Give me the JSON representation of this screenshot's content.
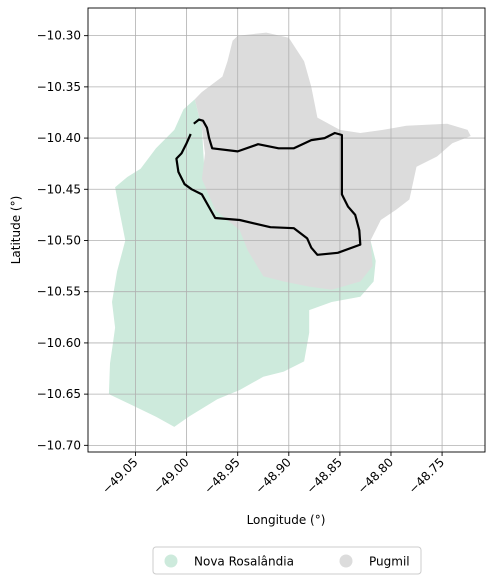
{
  "map": {
    "xlabel": "Longitude (°)",
    "ylabel": "Latitude (°)",
    "xlim": [
      -49.0965,
      -48.708
    ],
    "ylim": [
      -10.7065,
      -10.273
    ],
    "x_ticks": [
      -49.05,
      -49.0,
      -48.95,
      -48.9,
      -48.85,
      -48.8,
      -48.75
    ],
    "x_tick_labels": [
      "−49.05",
      "−49.00",
      "−48.95",
      "−48.90",
      "−48.85",
      "−48.80",
      "−48.75"
    ],
    "y_ticks": [
      -10.3,
      -10.35,
      -10.4,
      -10.45,
      -10.5,
      -10.55,
      -10.6,
      -10.65,
      -10.7
    ],
    "y_tick_labels": [
      "−10.30",
      "−10.35",
      "−10.40",
      "−10.45",
      "−10.50",
      "−10.55",
      "−10.60",
      "−10.65",
      "−10.70"
    ],
    "grid": true,
    "legend_position": "bottom-center"
  },
  "regions": [
    {
      "name": "Nova Rosalândia",
      "color": "#cdeadc",
      "outline": [
        [
          -49.003,
          -10.372
        ],
        [
          -48.992,
          -10.362
        ],
        [
          -48.985,
          -10.39
        ],
        [
          -48.983,
          -10.425
        ],
        [
          -48.975,
          -10.44
        ],
        [
          -48.962,
          -10.452
        ],
        [
          -48.951,
          -10.462
        ],
        [
          -48.932,
          -10.467
        ],
        [
          -48.905,
          -10.47
        ],
        [
          -48.878,
          -10.47
        ],
        [
          -48.848,
          -10.462
        ],
        [
          -48.833,
          -10.48
        ],
        [
          -48.82,
          -10.5
        ],
        [
          -48.815,
          -10.52
        ],
        [
          -48.817,
          -10.54
        ],
        [
          -48.83,
          -10.555
        ],
        [
          -48.858,
          -10.56
        ],
        [
          -48.88,
          -10.568
        ],
        [
          -48.88,
          -10.59
        ],
        [
          -48.885,
          -10.618
        ],
        [
          -48.905,
          -10.628
        ],
        [
          -48.925,
          -10.633
        ],
        [
          -48.948,
          -10.646
        ],
        [
          -48.97,
          -10.655
        ],
        [
          -48.998,
          -10.672
        ],
        [
          -49.012,
          -10.682
        ],
        [
          -49.03,
          -10.672
        ],
        [
          -49.055,
          -10.66
        ],
        [
          -49.076,
          -10.65
        ],
        [
          -49.075,
          -10.62
        ],
        [
          -49.072,
          -10.6
        ],
        [
          -49.07,
          -10.585
        ],
        [
          -49.073,
          -10.56
        ],
        [
          -49.068,
          -10.53
        ],
        [
          -49.06,
          -10.5
        ],
        [
          -49.065,
          -10.475
        ],
        [
          -49.07,
          -10.448
        ],
        [
          -49.058,
          -10.438
        ],
        [
          -49.045,
          -10.43
        ],
        [
          -49.03,
          -10.41
        ],
        [
          -49.012,
          -10.392
        ]
      ]
    },
    {
      "name": "Pugmil",
      "color": "#dcdcdc",
      "outline": [
        [
          -48.95,
          -10.3
        ],
        [
          -48.922,
          -10.297
        ],
        [
          -48.9,
          -10.302
        ],
        [
          -48.885,
          -10.325
        ],
        [
          -48.878,
          -10.35
        ],
        [
          -48.872,
          -10.38
        ],
        [
          -48.85,
          -10.392
        ],
        [
          -48.83,
          -10.395
        ],
        [
          -48.808,
          -10.392
        ],
        [
          -48.785,
          -10.388
        ],
        [
          -48.745,
          -10.386
        ],
        [
          -48.725,
          -10.392
        ],
        [
          -48.722,
          -10.398
        ],
        [
          -48.74,
          -10.405
        ],
        [
          -48.755,
          -10.418
        ],
        [
          -48.775,
          -10.428
        ],
        [
          -48.782,
          -10.46
        ],
        [
          -48.795,
          -10.47
        ],
        [
          -48.81,
          -10.48
        ],
        [
          -48.82,
          -10.5
        ],
        [
          -48.818,
          -10.525
        ],
        [
          -48.83,
          -10.54
        ],
        [
          -48.858,
          -10.548
        ],
        [
          -48.88,
          -10.545
        ],
        [
          -48.905,
          -10.54
        ],
        [
          -48.925,
          -10.535
        ],
        [
          -48.94,
          -10.51
        ],
        [
          -48.948,
          -10.49
        ],
        [
          -48.972,
          -10.47
        ],
        [
          -48.985,
          -10.44
        ],
        [
          -48.982,
          -10.415
        ],
        [
          -48.985,
          -10.39
        ],
        [
          -48.992,
          -10.362
        ],
        [
          -48.985,
          -10.355
        ],
        [
          -48.965,
          -10.34
        ],
        [
          -48.96,
          -10.325
        ],
        [
          -48.955,
          -10.305
        ]
      ]
    }
  ],
  "boundary": {
    "color": "#000000",
    "line": [
      [
        -48.993,
        -10.386
      ],
      [
        -48.988,
        -10.382
      ],
      [
        -48.984,
        -10.383
      ],
      [
        -48.98,
        -10.39
      ],
      [
        -48.978,
        -10.4
      ],
      [
        -48.975,
        -10.41
      ],
      [
        -48.95,
        -10.413
      ],
      [
        -48.93,
        -10.406
      ],
      [
        -48.91,
        -10.41
      ],
      [
        -48.895,
        -10.41
      ],
      [
        -48.878,
        -10.402
      ],
      [
        -48.865,
        -10.4
      ],
      [
        -48.855,
        -10.395
      ],
      [
        -48.848,
        -10.397
      ],
      [
        -48.848,
        -10.455
      ],
      [
        -48.842,
        -10.467
      ],
      [
        -48.835,
        -10.475
      ],
      [
        -48.831,
        -10.49
      ],
      [
        -48.83,
        -10.504
      ],
      [
        -48.852,
        -10.512
      ],
      [
        -48.872,
        -10.514
      ],
      [
        -48.878,
        -10.507
      ],
      [
        -48.882,
        -10.498
      ],
      [
        -48.895,
        -10.488
      ],
      [
        -48.918,
        -10.487
      ],
      [
        -48.948,
        -10.48
      ],
      [
        -48.972,
        -10.478
      ],
      [
        -48.985,
        -10.455
      ],
      [
        -48.995,
        -10.45
      ],
      [
        -49.002,
        -10.445
      ],
      [
        -49.008,
        -10.433
      ],
      [
        -49.01,
        -10.42
      ],
      [
        -49.005,
        -10.415
      ],
      [
        -49.0,
        -10.405
      ],
      [
        -48.996,
        -10.396
      ]
    ]
  },
  "legend": {
    "items": [
      {
        "label": "Nova Rosalândia",
        "color": "#cdeadc"
      },
      {
        "label": "Pugmil",
        "color": "#dcdcdc"
      }
    ]
  }
}
